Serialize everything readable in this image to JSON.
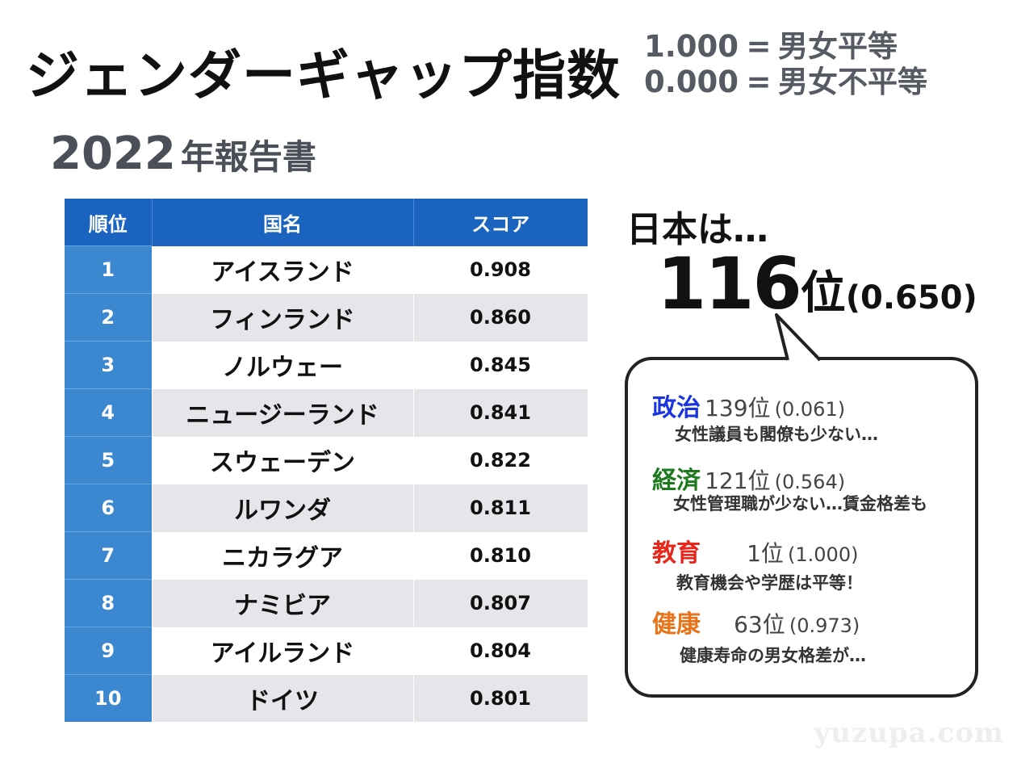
{
  "title": "ジェンダーギャップ指数",
  "legend": [
    {
      "value": "1.000",
      "eq": "=",
      "meaning": "男女平等"
    },
    {
      "value": "0.000",
      "eq": "=",
      "meaning": "男女不平等"
    }
  ],
  "subtitle": {
    "year": "2022",
    "rest": "年報告書"
  },
  "table": {
    "headers": [
      "順位",
      "国名",
      "スコア"
    ],
    "rows": [
      {
        "rank": "1",
        "country": "アイスランド",
        "score": "0.908"
      },
      {
        "rank": "2",
        "country": "フィンランド",
        "score": "0.860"
      },
      {
        "rank": "3",
        "country": "ノルウェー",
        "score": "0.845"
      },
      {
        "rank": "4",
        "country": "ニュージーランド",
        "score": "0.841"
      },
      {
        "rank": "5",
        "country": "スウェーデン",
        "score": "0.822"
      },
      {
        "rank": "6",
        "country": "ルワンダ",
        "score": "0.811"
      },
      {
        "rank": "7",
        "country": "ニカラグア",
        "score": "0.810"
      },
      {
        "rank": "8",
        "country": "ナミビア",
        "score": "0.807"
      },
      {
        "rank": "9",
        "country": "アイルランド",
        "score": "0.804"
      },
      {
        "rank": "10",
        "country": "ドイツ",
        "score": "0.801"
      }
    ]
  },
  "japan": {
    "label": "日本は…",
    "rank": "116",
    "unit": "位",
    "score": "(0.650)"
  },
  "categories": [
    {
      "name": "政治",
      "color": "#1a35e0",
      "rank": "139位",
      "score": "(0.061)",
      "desc": "女性議員も閣僚も少ない…"
    },
    {
      "name": "経済",
      "color": "#1e7a1e",
      "rank": "121位",
      "score": "(0.564)",
      "desc": "女性管理職が少ない…賃金格差も"
    },
    {
      "name": "教育",
      "color": "#e8261a",
      "rank": "1位",
      "score": "(1.000)",
      "desc": "教育機会や学歴は平等！"
    },
    {
      "name": "健康",
      "color": "#e8741a",
      "rank": "63位",
      "score": "(0.973)",
      "desc": "健康寿命の男女格差が…"
    }
  ],
  "watermark": "yuzupa.com"
}
